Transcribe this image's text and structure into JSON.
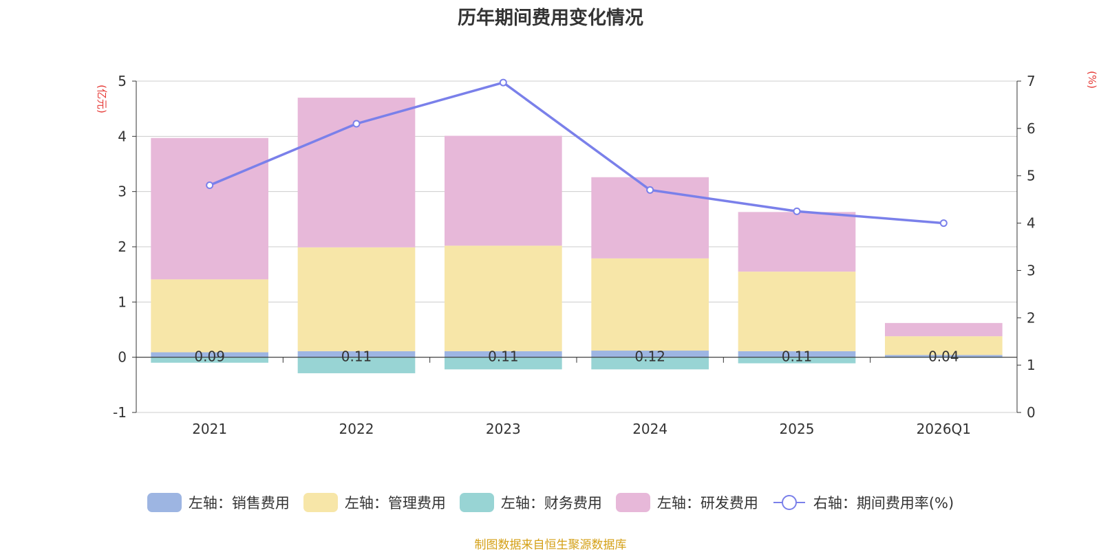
{
  "chart_data": {
    "type": "bar",
    "stacked": true,
    "title": "历年期间费用变化情况",
    "categories": [
      "2021",
      "2022",
      "2023",
      "2024",
      "2025",
      "2026Q1"
    ],
    "left_axis": {
      "unit": "(亿元)",
      "range": [
        -1,
        5
      ],
      "ticks": [
        "5",
        "4",
        "3",
        "2",
        "1",
        "0",
        "-1"
      ]
    },
    "right_axis": {
      "unit": "(%)",
      "range": [
        0,
        7
      ],
      "ticks": [
        "7",
        "6",
        "5",
        "4",
        "3",
        "2",
        "1",
        "0"
      ]
    },
    "series": [
      {
        "name": "左轴：销售费用",
        "color": "#9db5e2",
        "values": [
          0.09,
          0.11,
          0.11,
          0.12,
          0.11,
          0.04
        ],
        "value_labels": [
          "0.09",
          "0.11",
          "0.11",
          "0.12",
          "0.11",
          "0.04"
        ]
      },
      {
        "name": "左轴：管理费用",
        "color": "#f7e6a8",
        "values": [
          1.32,
          1.88,
          1.91,
          1.67,
          1.44,
          0.34
        ]
      },
      {
        "name": "左轴：财务费用",
        "color": "#98d4d4",
        "values": [
          -0.1,
          -0.29,
          -0.22,
          -0.22,
          -0.11,
          -0.01
        ]
      },
      {
        "name": "左轴：研发费用",
        "color": "#e7b8d9",
        "values": [
          2.56,
          2.71,
          1.99,
          1.47,
          1.08,
          0.24
        ]
      }
    ],
    "line": {
      "name": "右轴：期间费用率(%)",
      "color": "#7a80ea",
      "values": [
        4.8,
        6.1,
        6.97,
        4.7,
        4.25,
        4.0
      ]
    },
    "grid": true,
    "legend_position": "bottom"
  },
  "source": "制图数据来自恒生聚源数据库"
}
